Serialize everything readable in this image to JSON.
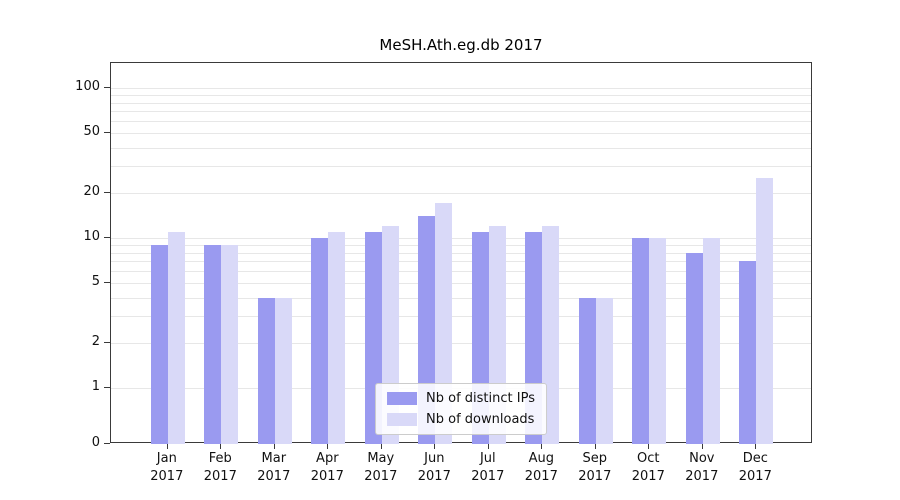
{
  "title": "MeSH.Ath.eg.db 2017",
  "chart_data": {
    "type": "bar",
    "title": "MeSH.Ath.eg.db 2017",
    "xlabel": "",
    "ylabel": "",
    "y_scale": "log",
    "ylim": [
      0,
      100
    ],
    "grid": true,
    "legend_position": "bottom-center",
    "year": "2017",
    "months": [
      "Jan",
      "Feb",
      "Mar",
      "Apr",
      "May",
      "Jun",
      "Jul",
      "Aug",
      "Sep",
      "Oct",
      "Nov",
      "Dec"
    ],
    "categories": [
      "Jan 2017",
      "Feb 2017",
      "Mar 2017",
      "Apr 2017",
      "May 2017",
      "Jun 2017",
      "Jul 2017",
      "Aug 2017",
      "Sep 2017",
      "Oct 2017",
      "Nov 2017",
      "Dec 2017"
    ],
    "yticks": [
      100,
      50,
      20,
      10,
      5,
      2,
      1,
      0
    ],
    "series": [
      {
        "name": "Nb of distinct IPs",
        "color": "#9a9af0",
        "values": [
          9,
          9,
          4,
          10,
          11,
          14,
          11,
          11,
          4,
          10,
          8,
          7
        ]
      },
      {
        "name": "Nb of downloads",
        "color": "#d9d9f8",
        "values": [
          11,
          9,
          4,
          11,
          12,
          17,
          12,
          12,
          4,
          10,
          10,
          25
        ]
      }
    ]
  }
}
